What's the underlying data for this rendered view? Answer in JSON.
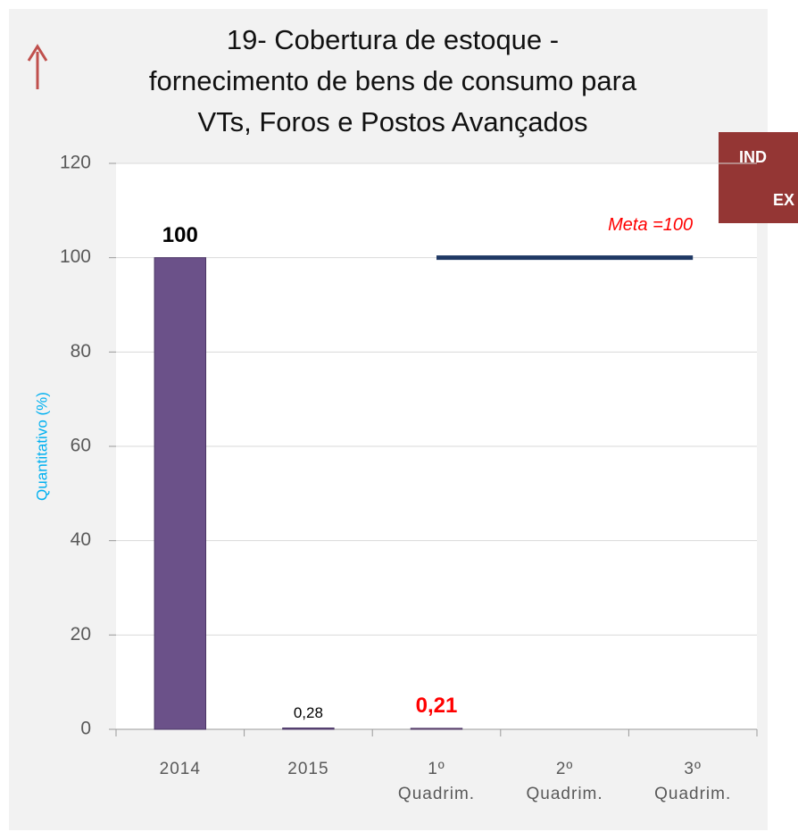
{
  "chart_data": {
    "type": "bar",
    "title": "19- Cobertura de estoque -\nfornecimento de bens de consumo para\nVTs, Foros e Postos Avançados",
    "y_label": "Quantitativo (%)",
    "categories": [
      "2014",
      "2015",
      "1º\nQuadrim.",
      "2º\nQuadrim.",
      "3º\nQuadrim."
    ],
    "values": [
      100,
      0.28,
      0.21,
      null,
      null
    ],
    "value_labels": [
      "100",
      "0,28",
      "0,21",
      null,
      null
    ],
    "colors": [
      "#6b5189",
      "#6b5189",
      "#e08080",
      "#6b5189",
      "#6b5189"
    ],
    "value_label_colors": [
      "#000000",
      "#000000",
      "#ff0000",
      "#000000",
      "#000000"
    ],
    "ylim": [
      0,
      120
    ],
    "yticks": [
      0,
      20,
      40,
      60,
      80,
      100,
      120
    ],
    "grid": true,
    "target": {
      "value": 100,
      "label": "Meta =100",
      "color": "#1f3864"
    },
    "badge": [
      "IND",
      "EX"
    ]
  }
}
